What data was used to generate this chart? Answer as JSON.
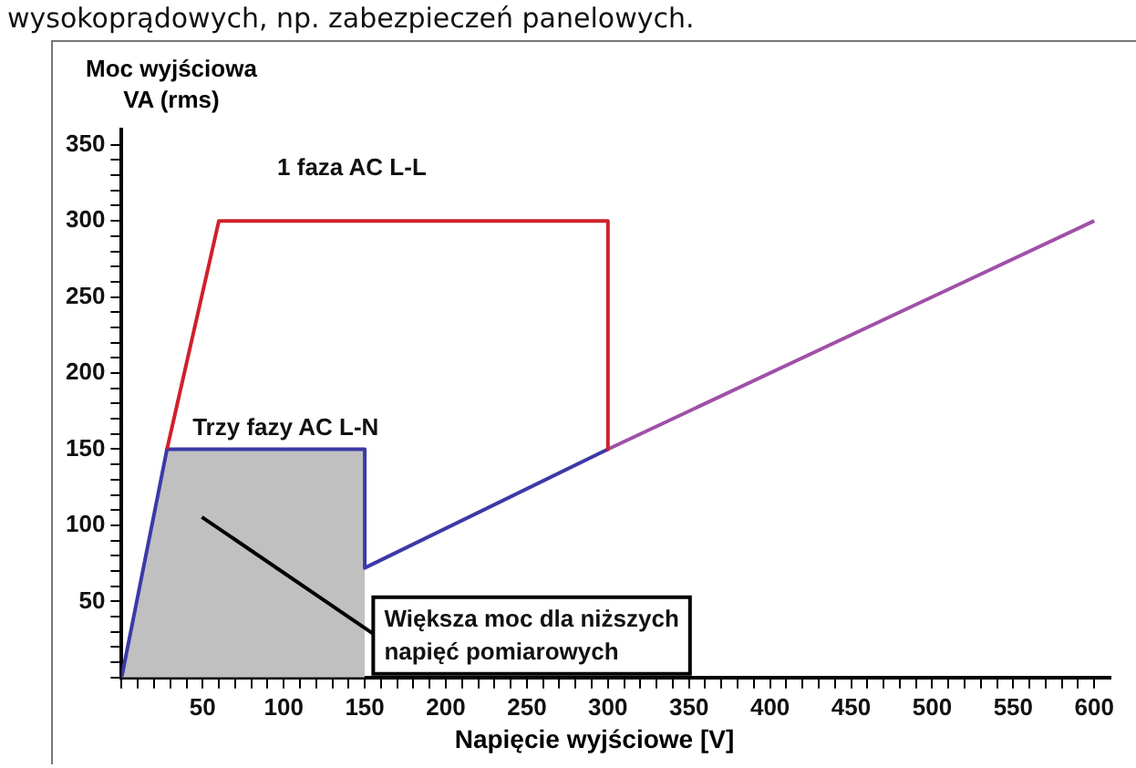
{
  "chart_data": {
    "type": "line",
    "xlabel": "Napięcie wyjściowe [V]",
    "ylabel": "Moc wyjściowa\nVA (rms)",
    "annotations": [
      "wysokoprądowych, np. zabezpieczeń panelowych.",
      "Większa moc dla niższych napięć pomiarowych"
    ],
    "series": [
      {
        "type": "area",
        "color": "#c0c0c0",
        "x": [
          0,
          28,
          150,
          150
        ],
        "values": [
          0,
          150,
          150,
          0
        ]
      },
      {
        "name": "1 faza AC L-L",
        "color": "#d0202c",
        "x": [
          28,
          60,
          300,
          300
        ],
        "values": [
          150,
          300,
          300,
          150
        ]
      },
      {
        "name": "Trzy fazy AC L-N",
        "color": "#3a3aa8",
        "x": [
          0,
          28,
          150,
          150,
          300
        ],
        "values": [
          0,
          150,
          150,
          72,
          150
        ]
      },
      {
        "color": "#a050a8",
        "x": [
          300,
          600
        ],
        "values": [
          150,
          300
        ]
      }
    ],
    "xlim": [
      0,
      610
    ],
    "ylim": [
      0,
      360
    ],
    "xticks": [
      {
        "value": 0,
        "label": null
      },
      {
        "value": 10,
        "label": null
      },
      {
        "value": 20,
        "label": null
      },
      {
        "value": 30,
        "label": null
      },
      {
        "value": 40,
        "label": null
      },
      50,
      {
        "value": 60,
        "label": null
      },
      {
        "value": 70,
        "label": null
      },
      {
        "value": 80,
        "label": null
      },
      {
        "value": 90,
        "label": null
      },
      100,
      {
        "value": 110,
        "label": null
      },
      {
        "value": 120,
        "label": null
      },
      {
        "value": 130,
        "label": null
      },
      {
        "value": 140,
        "label": null
      },
      150,
      {
        "value": 160,
        "label": null
      },
      {
        "value": 170,
        "label": null
      },
      {
        "value": 180,
        "label": null
      },
      {
        "value": 190,
        "label": null
      },
      200,
      {
        "value": 210,
        "label": null
      },
      {
        "value": 220,
        "label": null
      },
      {
        "value": 230,
        "label": null
      },
      {
        "value": 240,
        "label": null
      },
      250,
      {
        "value": 260,
        "label": null
      },
      {
        "value": 270,
        "label": null
      },
      {
        "value": 280,
        "label": null
      },
      {
        "value": 290,
        "label": null
      },
      300,
      {
        "value": 310,
        "label": null
      },
      {
        "value": 320,
        "label": null
      },
      {
        "value": 330,
        "label": null
      },
      {
        "value": 340,
        "label": null
      },
      350,
      {
        "value": 360,
        "label": null
      },
      {
        "value": 370,
        "label": null
      },
      {
        "value": 380,
        "label": null
      },
      {
        "value": 390,
        "label": null
      },
      400,
      {
        "value": 410,
        "label": null
      },
      {
        "value": 420,
        "label": null
      },
      {
        "value": 430,
        "label": null
      },
      {
        "value": 440,
        "label": null
      },
      450,
      {
        "value": 460,
        "label": null
      },
      {
        "value": 470,
        "label": null
      },
      {
        "value": 480,
        "label": null
      },
      {
        "value": 490,
        "label": null
      },
      500,
      {
        "value": 510,
        "label": null
      },
      {
        "value": 520,
        "label": null
      },
      {
        "value": 530,
        "label": null
      },
      {
        "value": 540,
        "label": null
      },
      550,
      {
        "value": 560,
        "label": null
      },
      {
        "value": 570,
        "label": null
      },
      {
        "value": 580,
        "label": null
      },
      {
        "value": 590,
        "label": null
      },
      600
    ],
    "yticks": [
      {
        "value": 0,
        "label": null
      },
      {
        "value": 10,
        "label": null
      },
      {
        "value": 20,
        "label": null
      },
      {
        "value": 30,
        "label": null
      },
      {
        "value": 40,
        "label": null
      },
      50,
      {
        "value": 60,
        "label": null
      },
      {
        "value": 70,
        "label": null
      },
      {
        "value": 80,
        "label": null
      },
      {
        "value": 90,
        "label": null
      },
      100,
      {
        "value": 110,
        "label": null
      },
      {
        "value": 120,
        "label": null
      },
      {
        "value": 130,
        "label": null
      },
      {
        "value": 140,
        "label": null
      },
      150,
      {
        "value": 160,
        "label": null
      },
      {
        "value": 170,
        "label": null
      },
      {
        "value": 180,
        "label": null
      },
      {
        "value": 190,
        "label": null
      },
      200,
      {
        "value": 210,
        "label": null
      },
      {
        "value": 220,
        "label": null
      },
      {
        "value": 230,
        "label": null
      },
      {
        "value": 240,
        "label": null
      },
      250,
      {
        "value": 260,
        "label": null
      },
      {
        "value": 270,
        "label": null
      },
      {
        "value": 280,
        "label": null
      },
      {
        "value": 290,
        "label": null
      },
      300,
      {
        "value": 310,
        "label": null
      },
      {
        "value": 320,
        "label": null
      },
      {
        "value": 330,
        "label": null
      },
      {
        "value": 340,
        "label": null
      },
      350
    ],
    "grid": false,
    "legend": false,
    "marker": "none",
    "line_style": "solid"
  }
}
